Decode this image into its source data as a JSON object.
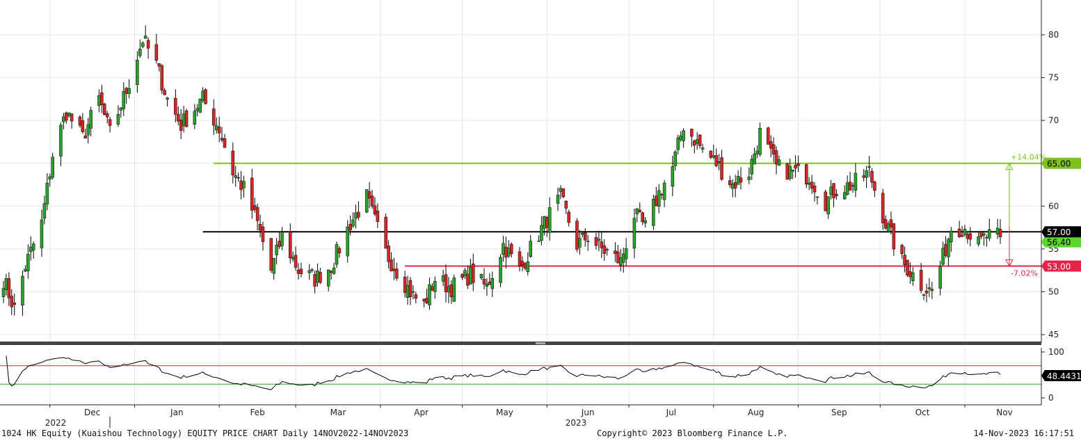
{
  "footer": {
    "left": "1024 HK Equity (Kuaishou Technology) EQUITY PRICE CHART  Daily 14NOV2022-14NOV2023",
    "center": "Copyright© 2023 Bloomberg Finance L.P.",
    "right": "14-Nov-2023 16:17:51"
  },
  "colors": {
    "up": "#2ca02c",
    "down": "#d62728",
    "upper_line": "#7dc21e",
    "middle_line": "#000000",
    "lower_line": "#e8234a",
    "rsi_line": "#000000",
    "rsi_upper": "#d62728",
    "rsi_lower": "#2ca02c"
  },
  "chart_data": [
    {
      "type": "candlestick",
      "title": "",
      "xlabel": "",
      "ylabel": "",
      "x_months": [
        "Dec",
        "Jan",
        "Feb",
        "Mar",
        "Apr",
        "May",
        "Jun",
        "Jul",
        "Aug",
        "Sep",
        "Oct",
        "Nov"
      ],
      "x_years": [
        "2022",
        "2023"
      ],
      "yticks": [
        45,
        50,
        55,
        60,
        65,
        70,
        75,
        80
      ],
      "ylim": [
        44,
        84
      ],
      "grid": true,
      "levels": [
        {
          "name": "upper",
          "value": 65.0,
          "label": "65.00",
          "pct_label": "+14.04%"
        },
        {
          "name": "middle",
          "value": 57.0,
          "label": "57.00"
        },
        {
          "name": "lower",
          "value": 53.0,
          "label": "53.00",
          "pct_label": "-7.02%"
        }
      ],
      "last_price_label": "56.40",
      "anchors": [
        [
          "2022-11-14",
          51.5
        ],
        [
          "2022-11-18",
          48.0
        ],
        [
          "2022-11-22",
          53.0
        ],
        [
          "2022-11-28",
          58.0
        ],
        [
          "2022-12-02",
          66.0
        ],
        [
          "2022-12-07",
          71.0
        ],
        [
          "2022-12-13",
          68.0
        ],
        [
          "2022-12-19",
          72.5
        ],
        [
          "2022-12-23",
          68.5
        ],
        [
          "2022-12-29",
          73.5
        ],
        [
          "2023-01-04",
          79.5
        ],
        [
          "2023-01-09",
          76.5
        ],
        [
          "2023-01-13",
          72.5
        ],
        [
          "2023-01-18",
          69.5
        ],
        [
          "2023-01-26",
          72.5
        ],
        [
          "2023-02-01",
          69.0
        ],
        [
          "2023-02-06",
          64.0
        ],
        [
          "2023-02-10",
          62.0
        ],
        [
          "2023-02-15",
          58.0
        ],
        [
          "2023-02-20",
          52.5
        ],
        [
          "2023-02-24",
          56.5
        ],
        [
          "2023-03-02",
          52.5
        ],
        [
          "2023-03-08",
          51.5
        ],
        [
          "2023-03-14",
          53.0
        ],
        [
          "2023-03-21",
          58.0
        ],
        [
          "2023-03-27",
          61.0
        ],
        [
          "2023-04-03",
          54.5
        ],
        [
          "2023-04-07",
          52.5
        ],
        [
          "2023-04-13",
          49.5
        ],
        [
          "2023-04-17",
          48.5
        ],
        [
          "2023-04-21",
          51.5
        ],
        [
          "2023-04-27",
          50.5
        ],
        [
          "2023-05-04",
          52.0
        ],
        [
          "2023-05-10",
          50.5
        ],
        [
          "2023-05-16",
          55.5
        ],
        [
          "2023-05-22",
          52.5
        ],
        [
          "2023-05-26",
          55.0
        ],
        [
          "2023-06-01",
          58.5
        ],
        [
          "2023-06-06",
          61.0
        ],
        [
          "2023-06-12",
          55.5
        ],
        [
          "2023-06-16",
          56.5
        ],
        [
          "2023-06-21",
          55.0
        ],
        [
          "2023-06-28",
          53.5
        ],
        [
          "2023-07-03",
          59.0
        ],
        [
          "2023-07-07",
          57.5
        ],
        [
          "2023-07-12",
          61.5
        ],
        [
          "2023-07-17",
          64.5
        ],
        [
          "2023-07-21",
          69.5
        ],
        [
          "2023-07-27",
          67.0
        ],
        [
          "2023-08-02",
          65.0
        ],
        [
          "2023-08-08",
          62.5
        ],
        [
          "2023-08-14",
          64.0
        ],
        [
          "2023-08-18",
          68.5
        ],
        [
          "2023-08-24",
          64.5
        ],
        [
          "2023-08-30",
          64.0
        ],
        [
          "2023-09-05",
          63.5
        ],
        [
          "2023-09-11",
          60.5
        ],
        [
          "2023-09-15",
          62.0
        ],
        [
          "2023-09-21",
          62.5
        ],
        [
          "2023-09-27",
          64.0
        ],
        [
          "2023-10-03",
          58.0
        ],
        [
          "2023-10-09",
          53.5
        ],
        [
          "2023-10-13",
          52.0
        ],
        [
          "2023-10-17",
          50.5
        ],
        [
          "2023-10-20",
          50.0
        ],
        [
          "2023-10-24",
          54.0
        ],
        [
          "2023-10-27",
          57.5
        ],
        [
          "2023-11-01",
          57.5
        ],
        [
          "2023-11-06",
          55.5
        ],
        [
          "2023-11-09",
          56.5
        ],
        [
          "2023-11-14",
          56.4
        ]
      ]
    },
    {
      "type": "line",
      "title": "",
      "ylabel": "",
      "yticks": [
        0,
        50,
        100
      ],
      "ylim": [
        -5,
        105
      ],
      "upper_band": 70,
      "lower_band": 30,
      "last_value_label": "48.4431"
    }
  ]
}
